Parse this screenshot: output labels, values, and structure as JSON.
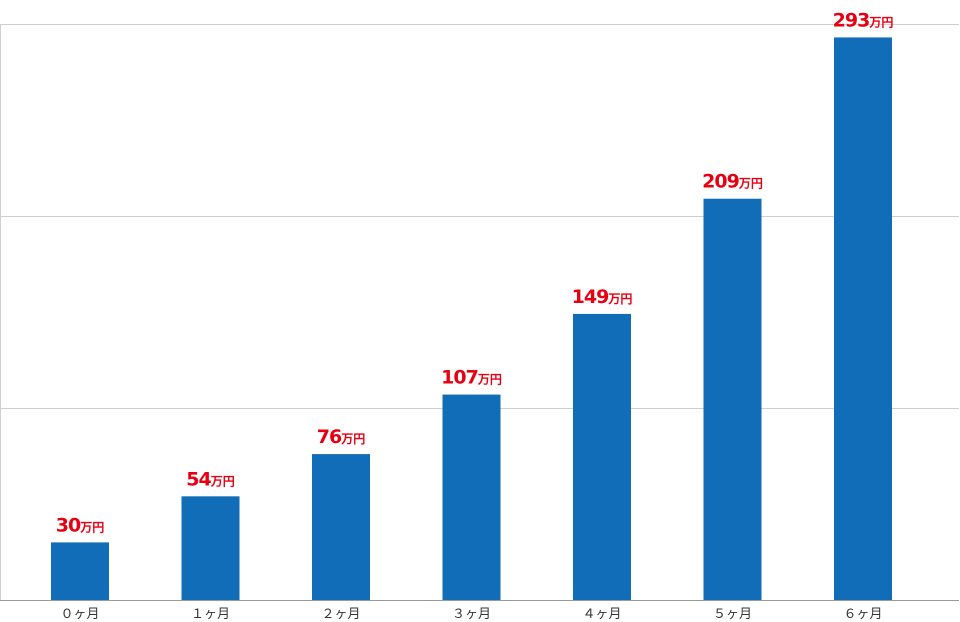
{
  "chart_data": {
    "type": "bar",
    "categories": [
      "０ヶ月",
      "１ヶ月",
      "２ヶ月",
      "３ヶ月",
      "４ヶ月",
      "５ヶ月",
      "６ヶ月"
    ],
    "values": [
      30,
      54,
      76,
      107,
      149,
      209,
      293
    ],
    "value_labels": [
      "30",
      "54",
      "76",
      "107",
      "149",
      "209",
      "293"
    ],
    "value_unit": "万円",
    "title": "",
    "xlabel": "",
    "ylabel": "",
    "ylim": [
      0,
      300
    ],
    "grid": true,
    "gridlines": [
      0,
      100,
      200,
      300
    ],
    "legend": "none",
    "colors": {
      "bar": "#116db7",
      "value_label": "#e60012",
      "grid": "#cfcfcf",
      "axis": "#9a9a9a",
      "tick_text": "#333333"
    }
  }
}
